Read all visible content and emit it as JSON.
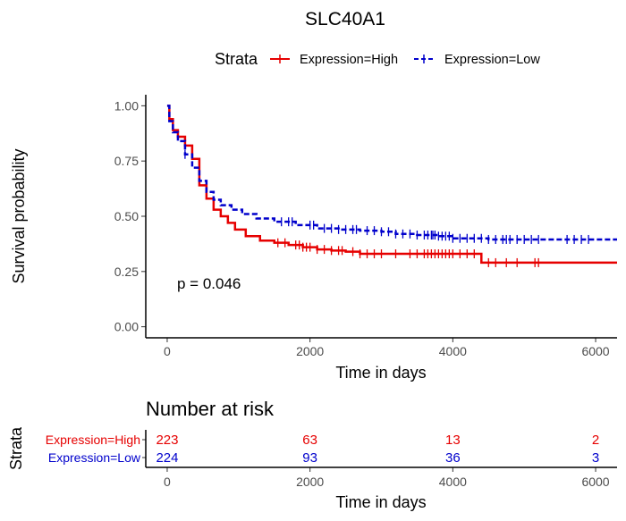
{
  "title": "SLC40A1",
  "legend": {
    "title": "Strata",
    "position": "top",
    "items": [
      {
        "label": "Expression=High",
        "color": "#e60000",
        "linestyle": "solid"
      },
      {
        "label": "Expression=Low",
        "color": "#0000cc",
        "linestyle": "dashed"
      }
    ]
  },
  "chart_data": [
    {
      "type": "line",
      "subtype": "kaplan-meier",
      "xlabel": "Time in days",
      "ylabel": "Survival probability",
      "xlim": [
        -300,
        6300
      ],
      "ylim": [
        -0.05,
        1.05
      ],
      "xticks": [
        0,
        2000,
        4000,
        6000
      ],
      "yticks": [
        "0.00",
        "0.25",
        "0.50",
        "0.75",
        "1.00"
      ],
      "grid": false,
      "annotation": "p = 0.046",
      "series": [
        {
          "name": "Expression=High",
          "color": "#e60000",
          "x": [
            0,
            30,
            80,
            150,
            250,
            350,
            450,
            550,
            650,
            750,
            850,
            950,
            1100,
            1300,
            1500,
            1700,
            1900,
            2100,
            2300,
            2500,
            2700,
            3000,
            3500,
            4000,
            4390,
            4400,
            5000,
            6300
          ],
          "y": [
            1.0,
            0.94,
            0.89,
            0.86,
            0.82,
            0.76,
            0.64,
            0.58,
            0.53,
            0.5,
            0.47,
            0.44,
            0.41,
            0.39,
            0.38,
            0.37,
            0.36,
            0.35,
            0.345,
            0.34,
            0.33,
            0.33,
            0.33,
            0.33,
            0.33,
            0.29,
            0.29,
            0.29
          ],
          "censor_x": [
            1550,
            1650,
            1800,
            1850,
            1900,
            1950,
            2000,
            2100,
            2200,
            2300,
            2400,
            2450,
            2600,
            2700,
            2800,
            2900,
            3000,
            3200,
            3400,
            3500,
            3600,
            3650,
            3700,
            3750,
            3800,
            3850,
            3900,
            3950,
            4000,
            4100,
            4200,
            4300,
            4500,
            4600,
            4750,
            4900,
            5150,
            5200
          ]
        },
        {
          "name": "Expression=Low",
          "color": "#0000cc",
          "x": [
            0,
            30,
            80,
            150,
            250,
            350,
            450,
            550,
            650,
            750,
            900,
            1050,
            1250,
            1500,
            1800,
            2100,
            2400,
            2700,
            3000,
            3200,
            3500,
            3800,
            4000,
            4500,
            5000,
            6300
          ],
          "y": [
            1.0,
            0.93,
            0.88,
            0.84,
            0.78,
            0.72,
            0.66,
            0.61,
            0.575,
            0.55,
            0.53,
            0.51,
            0.49,
            0.475,
            0.46,
            0.445,
            0.44,
            0.435,
            0.43,
            0.42,
            0.415,
            0.41,
            0.4,
            0.395,
            0.395,
            0.395
          ],
          "censor_x": [
            250,
            1600,
            1700,
            1750,
            2000,
            2050,
            2200,
            2300,
            2400,
            2500,
            2600,
            2650,
            2800,
            2900,
            3000,
            3100,
            3200,
            3300,
            3400,
            3500,
            3600,
            3650,
            3700,
            3720,
            3750,
            3800,
            3850,
            3900,
            3950,
            4000,
            4100,
            4200,
            4300,
            4400,
            4500,
            4600,
            4700,
            4750,
            4800,
            4900,
            5000,
            5100,
            5200,
            5600,
            5700,
            5800,
            5900
          ]
        }
      ]
    },
    {
      "type": "table",
      "title": "Number at risk",
      "ylabel": "Strata",
      "xlabel": "Time in days",
      "xlim": [
        -300,
        6300
      ],
      "xticks": [
        0,
        2000,
        4000,
        6000
      ],
      "rows": [
        {
          "label": "Expression=High",
          "color": "#e60000",
          "values": [
            223,
            63,
            13,
            2
          ]
        },
        {
          "label": "Expression=Low",
          "color": "#0000cc",
          "values": [
            224,
            93,
            36,
            3
          ]
        }
      ]
    }
  ]
}
